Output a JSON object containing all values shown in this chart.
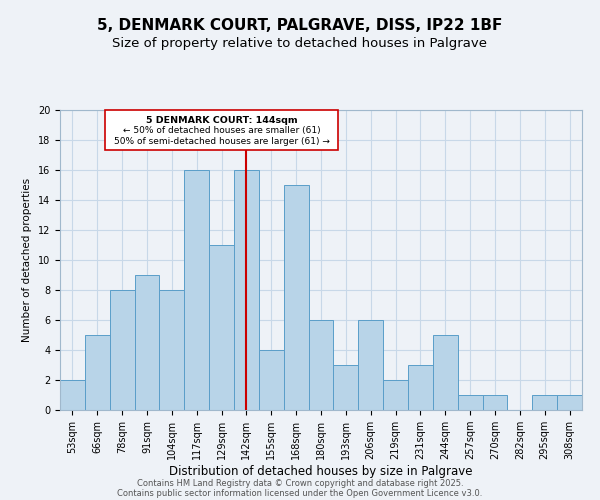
{
  "title": "5, DENMARK COURT, PALGRAVE, DISS, IP22 1BF",
  "subtitle": "Size of property relative to detached houses in Palgrave",
  "xlabel": "Distribution of detached houses by size in Palgrave",
  "ylabel": "Number of detached properties",
  "bar_labels": [
    "53sqm",
    "66sqm",
    "78sqm",
    "91sqm",
    "104sqm",
    "117sqm",
    "129sqm",
    "142sqm",
    "155sqm",
    "168sqm",
    "180sqm",
    "193sqm",
    "206sqm",
    "219sqm",
    "231sqm",
    "244sqm",
    "257sqm",
    "270sqm",
    "282sqm",
    "295sqm",
    "308sqm"
  ],
  "bar_values": [
    2,
    5,
    8,
    9,
    8,
    16,
    11,
    16,
    4,
    15,
    6,
    3,
    6,
    2,
    3,
    5,
    1,
    1,
    0,
    1,
    1
  ],
  "bar_color": "#b8d4e8",
  "bar_edge_color": "#5a9ec9",
  "vline_x": 7,
  "vline_color": "#cc0000",
  "annotation_text_line1": "5 DENMARK COURT: 144sqm",
  "annotation_text_line2": "← 50% of detached houses are smaller (61)",
  "annotation_text_line3": "50% of semi-detached houses are larger (61) →",
  "annotation_box_color": "#cc0000",
  "annotation_fill_color": "#ffffff",
  "ylim": [
    0,
    20
  ],
  "yticks": [
    0,
    2,
    4,
    6,
    8,
    10,
    12,
    14,
    16,
    18,
    20
  ],
  "grid_color": "#c8d8e8",
  "background_color": "#eef2f7",
  "footer_line1": "Contains HM Land Registry data © Crown copyright and database right 2025.",
  "footer_line2": "Contains public sector information licensed under the Open Government Licence v3.0.",
  "title_fontsize": 11,
  "subtitle_fontsize": 9.5,
  "xlabel_fontsize": 8.5,
  "ylabel_fontsize": 7.5,
  "tick_fontsize": 7
}
